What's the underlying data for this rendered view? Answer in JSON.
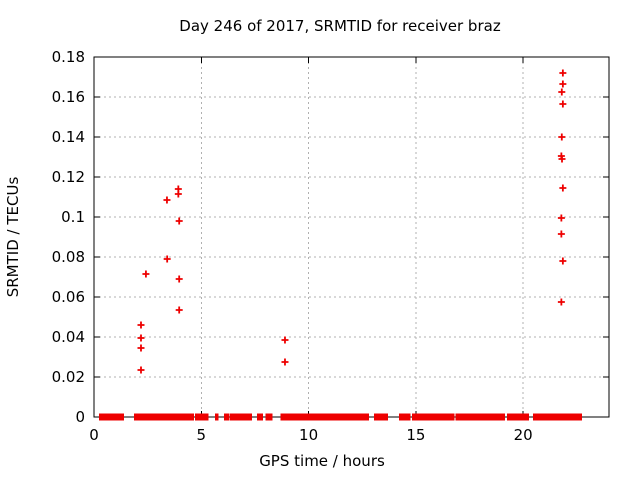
{
  "chart_data": {
    "type": "scatter",
    "title": "Day 246 of 2017, SRMTID for receiver braz",
    "xlabel": "GPS time / hours",
    "ylabel": "SRMTID / TECUs",
    "xlim": [
      0,
      24
    ],
    "ylim": [
      0,
      0.18
    ],
    "xticks": {
      "values": [
        0,
        5,
        10,
        15,
        20
      ],
      "labels": [
        "0",
        "5",
        "10",
        "15",
        "20"
      ]
    },
    "yticks": {
      "values": [
        0,
        0.02,
        0.04,
        0.06,
        0.08,
        0.1,
        0.12,
        0.14,
        0.16,
        0.18
      ],
      "labels": [
        "0",
        "0.02",
        "0.04",
        "0.06",
        "0.08",
        "0.1",
        "0.12",
        "0.14",
        "0.16",
        "0.18"
      ]
    },
    "grid": true,
    "legend": "none",
    "marker": "plus",
    "marker_color": "#ee0000",
    "grid_color": "#b0b0b0",
    "axis_color": "#000000",
    "background_color": "#ffffff",
    "series": [
      {
        "name": "srmtid",
        "points": [
          [
            2.19,
            0.0235
          ],
          [
            2.19,
            0.0345
          ],
          [
            2.19,
            0.0395
          ],
          [
            2.19,
            0.046
          ],
          [
            2.42,
            0.0715
          ],
          [
            3.4,
            0.1085
          ],
          [
            3.41,
            0.079
          ],
          [
            3.93,
            0.1115
          ],
          [
            3.93,
            0.114
          ],
          [
            3.97,
            0.0535
          ],
          [
            3.97,
            0.069
          ],
          [
            3.97,
            0.098
          ],
          [
            8.9,
            0.0275
          ],
          [
            8.9,
            0.0385
          ],
          [
            21.78,
            0.0575
          ],
          [
            21.78,
            0.0915
          ],
          [
            21.78,
            0.0995
          ],
          [
            21.78,
            0.1305
          ],
          [
            21.81,
            0.129
          ],
          [
            21.8,
            0.14
          ],
          [
            21.8,
            0.1625
          ],
          [
            21.85,
            0.078
          ],
          [
            21.85,
            0.1145
          ],
          [
            21.85,
            0.1565
          ],
          [
            21.85,
            0.1665
          ],
          [
            21.85,
            0.172
          ]
        ]
      }
    ],
    "zero_line_segments_hours": [
      [
        0.28,
        0.79
      ],
      [
        0.89,
        1.35
      ],
      [
        1.91,
        4.61
      ],
      [
        4.75,
        4.94
      ],
      [
        5.03,
        5.13
      ],
      [
        5.22,
        5.29
      ],
      [
        5.69,
        5.76
      ],
      [
        6.1,
        6.27
      ],
      [
        6.38,
        6.94
      ],
      [
        7.04,
        7.32
      ],
      [
        7.64,
        7.83
      ],
      [
        8.04,
        8.27
      ],
      [
        8.74,
        11.23
      ],
      [
        11.32,
        12.77
      ],
      [
        13.09,
        13.19
      ],
      [
        13.28,
        13.65
      ],
      [
        14.26,
        14.49
      ],
      [
        14.56,
        14.7
      ],
      [
        14.87,
        14.94
      ],
      [
        15.01,
        15.75
      ],
      [
        15.84,
        16.01
      ],
      [
        16.08,
        16.47
      ],
      [
        16.54,
        16.64
      ],
      [
        16.68,
        16.75
      ],
      [
        16.89,
        17.24
      ],
      [
        17.33,
        17.43
      ],
      [
        17.52,
        18.92
      ],
      [
        19.01,
        19.11
      ],
      [
        19.29,
        20.23
      ],
      [
        20.5,
        20.83
      ],
      [
        20.88,
        21.81
      ],
      [
        21.86,
        22.53
      ],
      [
        22.6,
        22.7
      ]
    ]
  }
}
